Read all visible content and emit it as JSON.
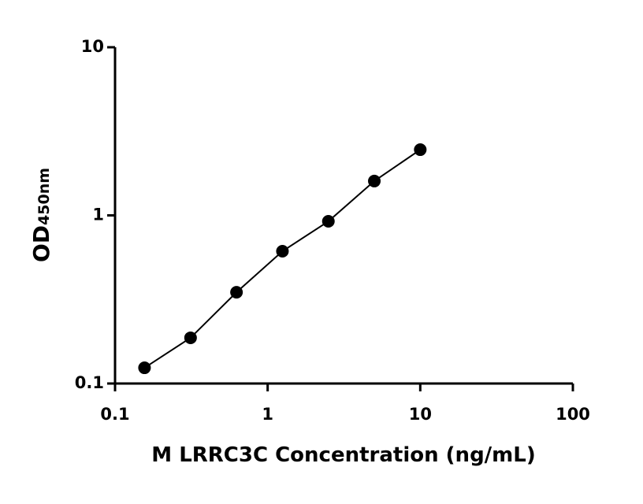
{
  "chart_data": {
    "type": "scatter",
    "x_label": "M LRRC3C Concentration (ng/mL)",
    "y_label": {
      "text": "OD",
      "subscript": "450nm"
    },
    "x": [
      0.156,
      0.3125,
      0.625,
      1.25,
      2.5,
      5,
      10
    ],
    "series": [
      {
        "color": "#000000",
        "values": [
          0.124,
          0.187,
          0.349,
          0.612,
          0.922,
          1.6,
          2.46
        ]
      }
    ],
    "xscale": "log",
    "yscale": "log",
    "xlim": [
      0.1,
      100
    ],
    "ylim": [
      0.1,
      10
    ],
    "xticks": [
      0.1,
      1,
      10,
      100
    ],
    "yticks": [
      0.1,
      1,
      10
    ],
    "fit_line": true
  }
}
